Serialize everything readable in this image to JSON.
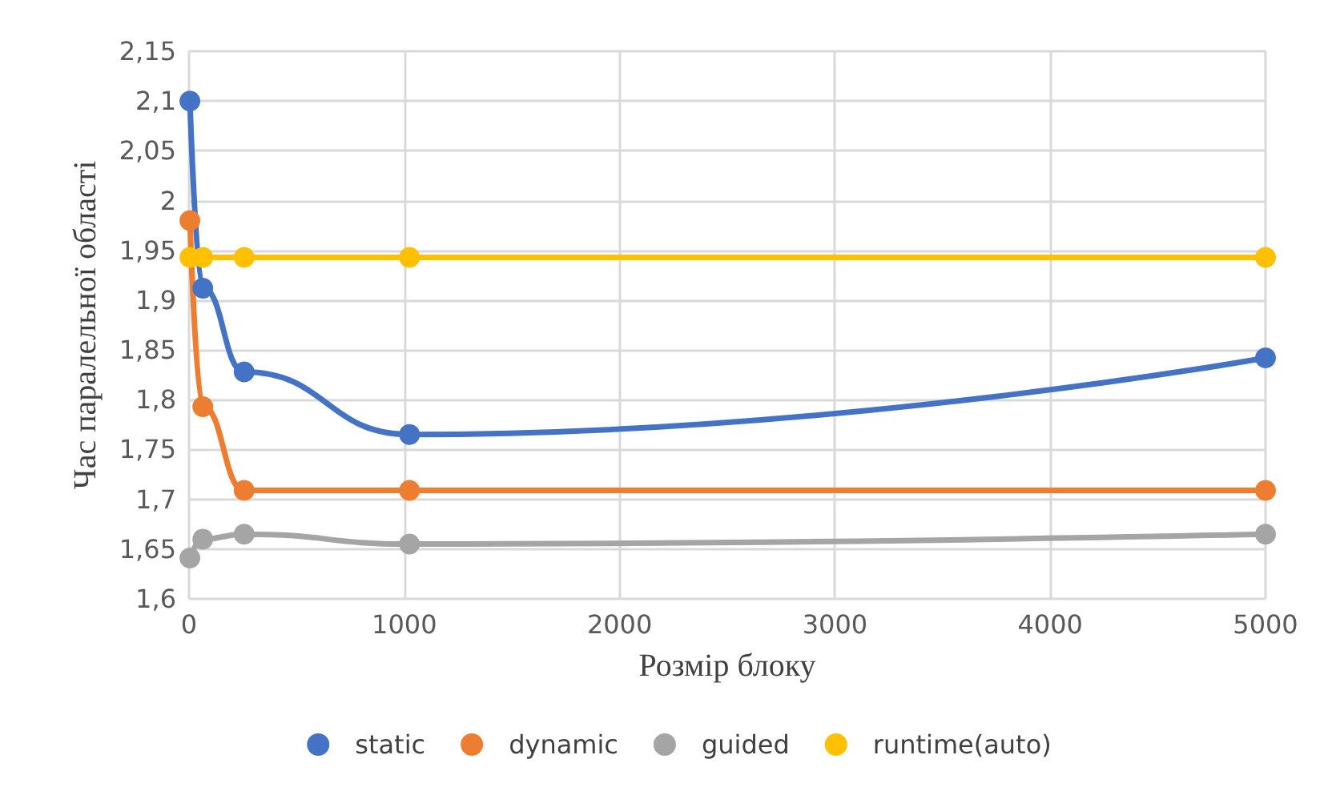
{
  "chart_data": {
    "type": "line",
    "xlabel": "Розмір блоку",
    "ylabel": "Час паралельної області",
    "x": [
      4,
      64,
      256,
      1024,
      5000
    ],
    "series": [
      {
        "name": "static",
        "color": "#4472c4",
        "values": [
          2.1,
          1.912,
          1.828,
          1.765,
          1.842
        ]
      },
      {
        "name": "dynamic",
        "color": "#ed7d31",
        "values": [
          1.98,
          1.793,
          1.709,
          1.709,
          1.709
        ]
      },
      {
        "name": "guided",
        "color": "#a5a5a5",
        "values": [
          1.641,
          1.66,
          1.665,
          1.655,
          1.665
        ]
      },
      {
        "name": "runtime(auto)",
        "color": "#ffc000",
        "values": [
          1.943,
          1.943,
          1.943,
          1.943,
          1.943
        ]
      }
    ],
    "xlim": [
      0,
      5000
    ],
    "xticks": [
      0,
      1000,
      2000,
      3000,
      4000,
      5000
    ],
    "ylim": [
      1.6,
      2.15
    ],
    "yticks": [
      {
        "value": 1.6,
        "label": "1,6"
      },
      {
        "value": 1.65,
        "label": "1,65"
      },
      {
        "value": 1.7,
        "label": "1,7"
      },
      {
        "value": 1.75,
        "label": "1,75"
      },
      {
        "value": 1.8,
        "label": "1,8"
      },
      {
        "value": 1.85,
        "label": "1,85"
      },
      {
        "value": 1.9,
        "label": "1,9"
      },
      {
        "value": 1.95,
        "label": "1,95"
      },
      {
        "value": 2,
        "label": "2"
      },
      {
        "value": 2.05,
        "label": "2,05"
      },
      {
        "value": 2.1,
        "label": "2,1"
      },
      {
        "value": 2.15,
        "label": "2,15"
      }
    ],
    "grid": true,
    "legend": "bottom",
    "marker": "circle",
    "line_style": "solid"
  }
}
